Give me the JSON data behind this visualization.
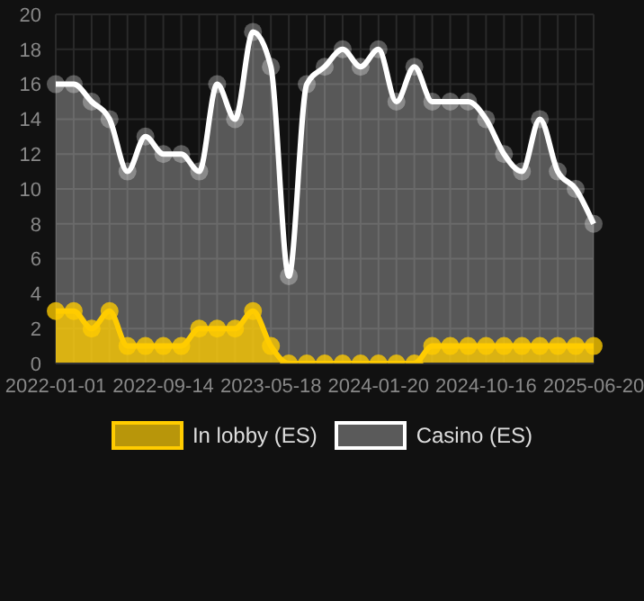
{
  "chart_data": {
    "type": "area",
    "categories": [
      "2022-01-01",
      null,
      null,
      null,
      null,
      null,
      "2022-09-14",
      null,
      null,
      null,
      null,
      null,
      "2023-05-18",
      null,
      null,
      null,
      null,
      null,
      "2024-01-20",
      null,
      null,
      null,
      null,
      null,
      "2024-10-16",
      null,
      null,
      null,
      null,
      null,
      "2025-06-20"
    ],
    "series": [
      {
        "name": "In lobby (ES)",
        "color": "#ffcc00",
        "values": [
          3,
          3,
          2,
          3,
          1,
          1,
          1,
          1,
          2,
          2,
          2,
          3,
          1,
          0,
          0,
          0,
          0,
          0,
          0,
          0,
          0,
          1,
          1,
          1,
          1,
          1,
          1,
          1,
          1,
          1,
          1
        ]
      },
      {
        "name": "Casino (ES)",
        "color": "#ffffff",
        "values": [
          16,
          16,
          15,
          14,
          11,
          13,
          12,
          12,
          11,
          16,
          14,
          19,
          17,
          5,
          16,
          17,
          18,
          17,
          18,
          15,
          17,
          15,
          15,
          15,
          14,
          12,
          11,
          14,
          11,
          10,
          8
        ]
      }
    ],
    "ylim": [
      0,
      20
    ],
    "yticks": [
      0,
      2,
      4,
      6,
      8,
      10,
      12,
      14,
      16,
      18,
      20
    ],
    "grid": true,
    "legend": "bottom",
    "marker": "circle"
  }
}
